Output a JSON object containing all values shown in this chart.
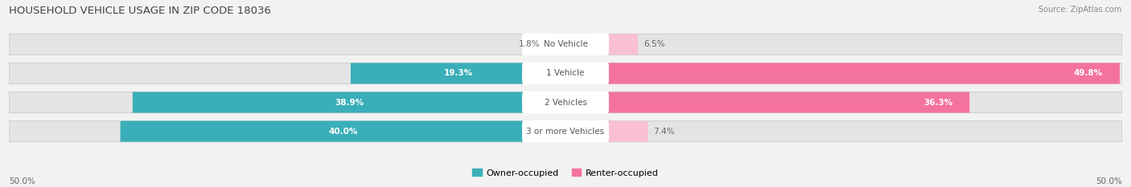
{
  "title": "HOUSEHOLD VEHICLE USAGE IN ZIP CODE 18036",
  "source": "Source: ZipAtlas.com",
  "categories": [
    "No Vehicle",
    "1 Vehicle",
    "2 Vehicles",
    "3 or more Vehicles"
  ],
  "owner_values": [
    1.8,
    19.3,
    38.9,
    40.0
  ],
  "renter_values": [
    6.5,
    49.8,
    36.3,
    7.4
  ],
  "owner_color": "#3AAFB9",
  "renter_color": "#F472A0",
  "renter_color_light": "#F9C0D5",
  "owner_color_light": "#A8DCDC",
  "background_color": "#F2F2F2",
  "bar_bg_color": "#E4E4E4",
  "axis_limit": 50.0,
  "legend_owner": "Owner-occupied",
  "legend_renter": "Renter-occupied",
  "x_tick_labels": [
    "50.0%",
    "50.0%"
  ],
  "value_label_inside_color": "#FFFFFF",
  "value_label_outside_color": "#777777",
  "inside_threshold_owner": 5.0,
  "inside_threshold_renter": 10.0
}
